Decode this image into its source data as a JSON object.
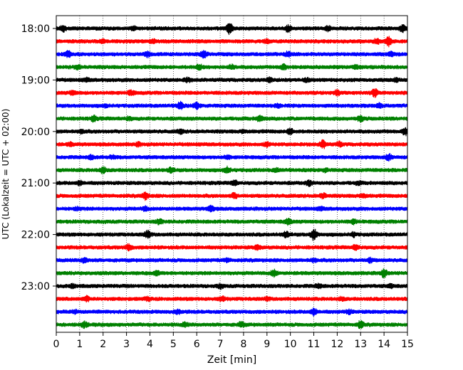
{
  "chart_data": {
    "type": "line",
    "title": "",
    "xlabel": "Zeit  [min]",
    "ylabel": "UTC (Lokalzeit = UTC + 02:00)",
    "xlim": [
      0,
      15
    ],
    "x_ticks": [
      0,
      1,
      2,
      3,
      4,
      5,
      6,
      7,
      8,
      9,
      10,
      11,
      12,
      13,
      14,
      15
    ],
    "x_tick_labels": [
      "0",
      "1",
      "2",
      "3",
      "4",
      "5",
      "6",
      "7",
      "8",
      "9",
      "10",
      "11",
      "12",
      "13",
      "14",
      "15"
    ],
    "y_tick_labels": [
      "18:00",
      "19:00",
      "20:00",
      "21:00",
      "22:00",
      "23:00"
    ],
    "y_tick_rows": [
      0,
      4,
      8,
      12,
      16,
      20
    ],
    "row_minutes": 15,
    "grid": {
      "x": true,
      "y": false,
      "style": "dotted"
    },
    "legend": "none",
    "colors": [
      "#000000",
      "#ff0000",
      "#0000ff",
      "#008000"
    ],
    "rows": [
      {
        "start": "18:00",
        "color": "#000000",
        "events": [
          [
            0.3,
            1.6
          ],
          [
            3.3,
            1.3
          ],
          [
            7.4,
            2.2
          ],
          [
            9.9,
            1.6
          ],
          [
            11.6,
            1.5
          ],
          [
            14.8,
            1.7
          ]
        ]
      },
      {
        "start": "18:15",
        "color": "#ff0000",
        "events": [
          [
            2.0,
            1.3
          ],
          [
            4.1,
            1.4
          ],
          [
            9.0,
            1.3
          ],
          [
            13.7,
            1.5
          ],
          [
            14.2,
            2.0
          ]
        ]
      },
      {
        "start": "18:30",
        "color": "#0000ff",
        "events": [
          [
            0.5,
            1.6
          ],
          [
            3.9,
            1.5
          ],
          [
            6.3,
            1.7
          ],
          [
            9.9,
            1.5
          ],
          [
            14.3,
            1.4
          ]
        ]
      },
      {
        "start": "18:45",
        "color": "#008000",
        "events": [
          [
            0.9,
            1.4
          ],
          [
            6.1,
            1.5
          ],
          [
            7.5,
            1.4
          ],
          [
            9.7,
            1.6
          ],
          [
            12.8,
            1.3
          ]
        ]
      },
      {
        "start": "19:00",
        "color": "#000000",
        "events": [
          [
            1.3,
            1.3
          ],
          [
            5.6,
            1.4
          ],
          [
            9.1,
            1.4
          ],
          [
            10.7,
            1.3
          ],
          [
            14.5,
            1.3
          ]
        ]
      },
      {
        "start": "19:15",
        "color": "#ff0000",
        "events": [
          [
            0.7,
            1.4
          ],
          [
            3.2,
            1.5
          ],
          [
            12.0,
            1.5
          ],
          [
            13.6,
            1.8
          ]
        ]
      },
      {
        "start": "19:30",
        "color": "#0000ff",
        "events": [
          [
            2.1,
            1.2
          ],
          [
            5.3,
            1.8
          ],
          [
            6.0,
            1.6
          ],
          [
            9.5,
            1.3
          ],
          [
            13.8,
            1.4
          ]
        ]
      },
      {
        "start": "19:45",
        "color": "#008000",
        "events": [
          [
            1.6,
            1.5
          ],
          [
            3.1,
            1.3
          ],
          [
            8.7,
            1.6
          ],
          [
            13.0,
            1.5
          ]
        ]
      },
      {
        "start": "20:00",
        "color": "#000000",
        "events": [
          [
            1.1,
            1.3
          ],
          [
            5.3,
            1.4
          ],
          [
            8.0,
            1.3
          ],
          [
            10.0,
            1.6
          ],
          [
            14.9,
            1.7
          ]
        ]
      },
      {
        "start": "20:15",
        "color": "#ff0000",
        "events": [
          [
            0.6,
            1.3
          ],
          [
            3.5,
            1.3
          ],
          [
            9.0,
            1.4
          ],
          [
            11.4,
            1.8
          ],
          [
            12.1,
            1.4
          ]
        ]
      },
      {
        "start": "20:30",
        "color": "#0000ff",
        "events": [
          [
            1.5,
            1.4
          ],
          [
            2.4,
            1.3
          ],
          [
            7.3,
            1.3
          ],
          [
            14.2,
            1.6
          ]
        ]
      },
      {
        "start": "20:45",
        "color": "#008000",
        "events": [
          [
            2.0,
            1.6
          ],
          [
            4.9,
            1.4
          ],
          [
            7.3,
            1.6
          ],
          [
            9.4,
            1.3
          ],
          [
            11.5,
            1.3
          ]
        ]
      },
      {
        "start": "21:00",
        "color": "#000000",
        "events": [
          [
            1.0,
            1.4
          ],
          [
            7.6,
            1.5
          ],
          [
            10.8,
            1.5
          ],
          [
            12.9,
            1.3
          ]
        ]
      },
      {
        "start": "21:15",
        "color": "#ff0000",
        "events": [
          [
            3.8,
            1.7
          ],
          [
            7.6,
            1.5
          ],
          [
            11.4,
            1.5
          ],
          [
            13.1,
            1.4
          ]
        ]
      },
      {
        "start": "21:30",
        "color": "#0000ff",
        "events": [
          [
            0.9,
            1.3
          ],
          [
            3.8,
            1.4
          ],
          [
            6.6,
            1.6
          ],
          [
            11.3,
            1.3
          ]
        ]
      },
      {
        "start": "21:45",
        "color": "#008000",
        "events": [
          [
            4.4,
            1.5
          ],
          [
            9.9,
            1.6
          ],
          [
            12.7,
            1.4
          ]
        ]
      },
      {
        "start": "22:00",
        "color": "#000000",
        "events": [
          [
            3.9,
            1.8
          ],
          [
            9.8,
            1.5
          ],
          [
            11.0,
            2.2
          ],
          [
            12.7,
            1.4
          ]
        ]
      },
      {
        "start": "22:15",
        "color": "#ff0000",
        "events": [
          [
            3.1,
            1.6
          ],
          [
            8.6,
            1.4
          ],
          [
            12.8,
            1.5
          ]
        ]
      },
      {
        "start": "22:30",
        "color": "#0000ff",
        "events": [
          [
            1.2,
            1.5
          ],
          [
            7.3,
            1.3
          ],
          [
            11.0,
            1.3
          ],
          [
            13.4,
            1.4
          ]
        ]
      },
      {
        "start": "22:45",
        "color": "#008000",
        "events": [
          [
            4.3,
            1.4
          ],
          [
            9.3,
            1.7
          ],
          [
            14.0,
            1.8
          ]
        ]
      },
      {
        "start": "23:00",
        "color": "#000000",
        "events": [
          [
            0.7,
            1.3
          ],
          [
            7.0,
            1.4
          ],
          [
            11.2,
            1.4
          ],
          [
            14.3,
            1.3
          ]
        ]
      },
      {
        "start": "23:15",
        "color": "#ff0000",
        "events": [
          [
            1.3,
            1.5
          ],
          [
            3.9,
            1.3
          ],
          [
            7.1,
            1.4
          ],
          [
            9.0,
            1.3
          ],
          [
            12.2,
            1.3
          ]
        ]
      },
      {
        "start": "23:30",
        "color": "#0000ff",
        "events": [
          [
            0.8,
            1.3
          ],
          [
            5.2,
            1.4
          ],
          [
            11.0,
            1.7
          ],
          [
            12.5,
            1.4
          ]
        ]
      },
      {
        "start": "23:45",
        "color": "#008000",
        "events": [
          [
            1.2,
            1.6
          ],
          [
            5.5,
            1.4
          ],
          [
            7.9,
            1.5
          ],
          [
            13.0,
            1.7
          ]
        ]
      }
    ]
  }
}
